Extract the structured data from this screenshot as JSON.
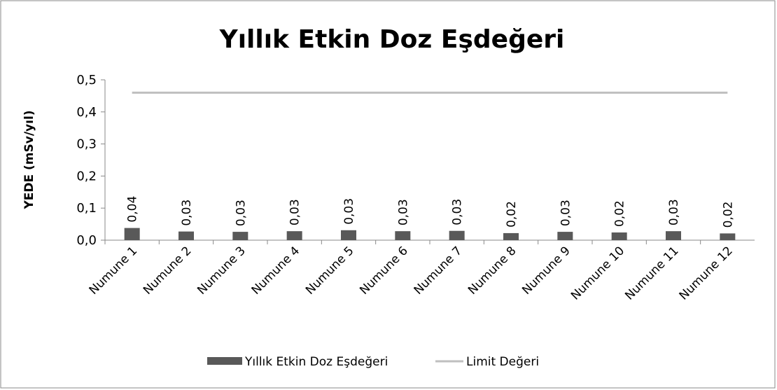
{
  "chart_data": {
    "type": "bar",
    "title": "Yıllık Etkin Doz Eşdeğeri",
    "y_label": "YEDE (mSv/yıl)",
    "categories": [
      "Numune 1",
      "Numune 2",
      "Numune 3",
      "Numune 4",
      "Numune 5",
      "Numune 6",
      "Numune 7",
      "Numune 8",
      "Numune 9",
      "Numune 10",
      "Numune 11",
      "Numune 12"
    ],
    "series": [
      {
        "name": "Yıllık Etkin Doz Eşdeğeri",
        "type": "bar",
        "color": "#595959",
        "values": [
          0.038,
          0.027,
          0.026,
          0.028,
          0.031,
          0.028,
          0.029,
          0.022,
          0.026,
          0.024,
          0.028,
          0.021
        ],
        "value_labels": [
          "0,04",
          "0,03",
          "0,03",
          "0,03",
          "0,03",
          "0,03",
          "0,03",
          "0,02",
          "0,03",
          "0,02",
          "0,03",
          "0,02"
        ]
      },
      {
        "name": "Limit Değeri",
        "type": "line",
        "color": "#bfbfbf",
        "values": [
          0.46,
          0.46,
          0.46,
          0.46,
          0.46,
          0.46,
          0.46,
          0.46,
          0.46,
          0.46,
          0.46,
          0.46
        ]
      }
    ],
    "ylim": [
      0,
      0.5
    ],
    "yticks": [
      {
        "value": 0,
        "label": "0,0"
      },
      {
        "value": 0.1,
        "label": "0,1"
      },
      {
        "value": 0.2,
        "label": "0,2"
      },
      {
        "value": 0.3,
        "label": "0,3"
      },
      {
        "value": 0.4,
        "label": "0,4"
      },
      {
        "value": 0.5,
        "label": "0,5"
      }
    ],
    "grid": false,
    "legend": "bottom"
  }
}
